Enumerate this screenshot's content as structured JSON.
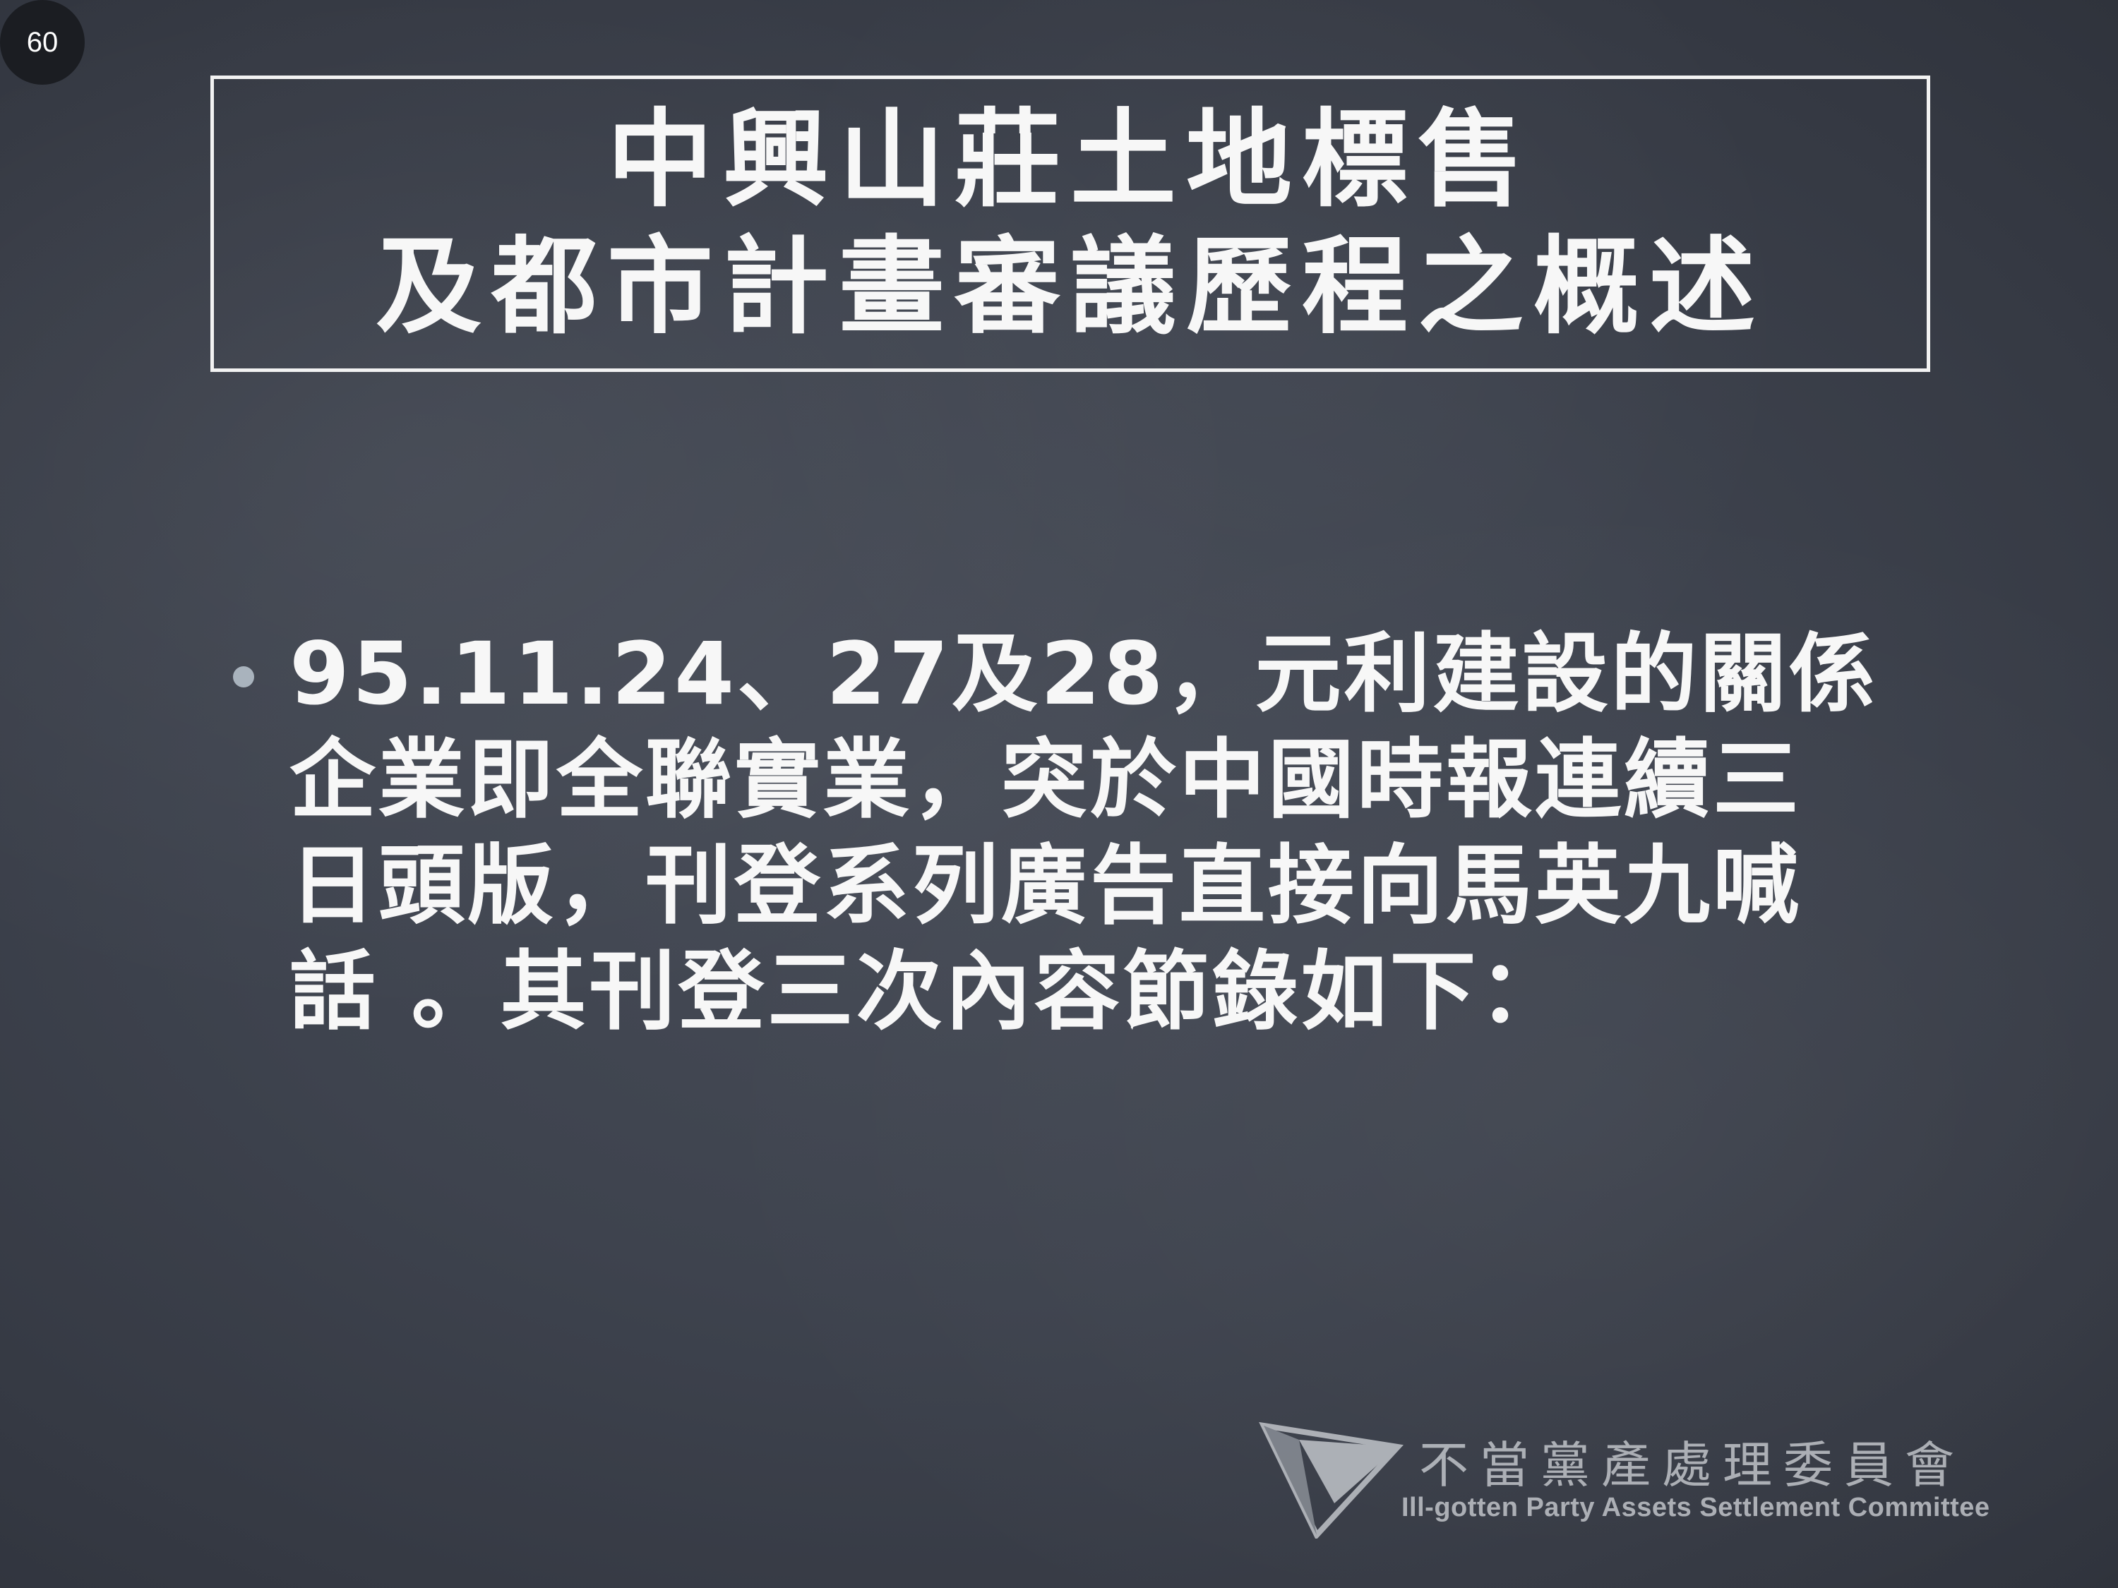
{
  "slide_number": "60",
  "title": {
    "line1": "中興山莊土地標售",
    "line2": "及都市計畫審議歷程之概述"
  },
  "body": {
    "lines": [
      "95.11.24、27及28，元利建設的關係",
      "企業即全聯實業，突於中國時報連續三",
      "日頭版，刊登系列廣告直接向馬英九喊",
      "話 。其刊登三次內容節錄如下："
    ]
  },
  "logo": {
    "name_zh": "不當黨產處理委員會",
    "name_en": "Ill-gotten Party Assets Settlement Committee",
    "icon": "triangle-logo-icon"
  },
  "colors": {
    "background": "#3e434e",
    "text": "#f7f7f7",
    "bullet": "#a9b3bd",
    "logo": "#c9ccd1"
  }
}
